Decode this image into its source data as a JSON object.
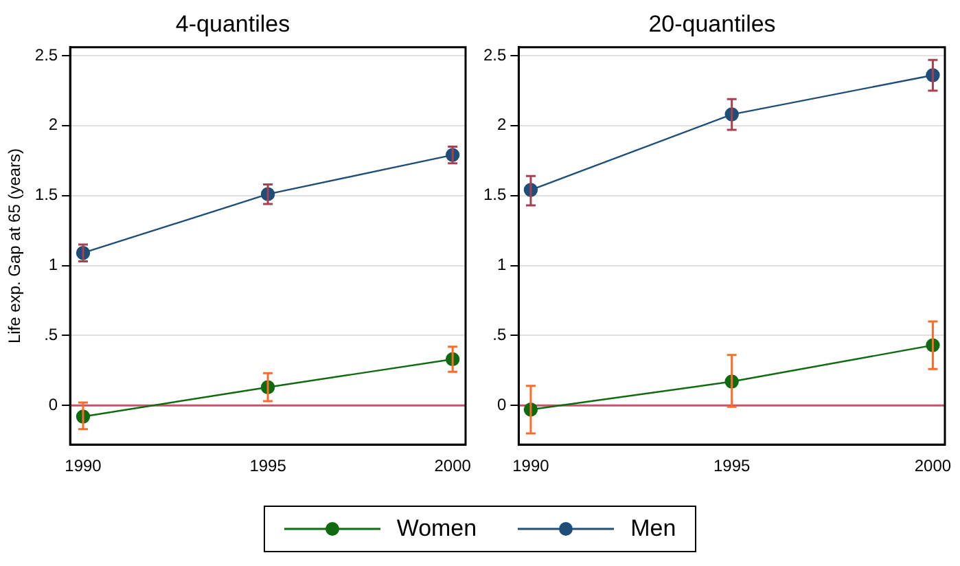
{
  "chart_data": [
    {
      "type": "line",
      "title": "4-quantiles",
      "ylabel": "Life exp. Gap at 65 (years)",
      "x": [
        1990,
        1995,
        2000
      ],
      "xlim": [
        1989.65,
        2000.35
      ],
      "xticks": [
        1990,
        1995,
        2000
      ],
      "ylim": [
        -0.28,
        2.56
      ],
      "yticks": [
        0,
        {
          "value": 0.5,
          "label": ".5"
        },
        1,
        1.5,
        2,
        2.5
      ],
      "grid": "y",
      "marker": "circle",
      "legend": "bottom",
      "ref_lines": [
        {
          "axis": "y",
          "value": 0,
          "color": "#c8506e"
        }
      ],
      "series": [
        {
          "name": "Women",
          "color": "#0f6b0f",
          "values": [
            -0.08,
            0.13,
            0.33
          ],
          "errors": [
            [
              -0.17,
              0.02
            ],
            [
              0.03,
              0.23
            ],
            [
              0.24,
              0.42
            ]
          ]
        },
        {
          "name": "Men",
          "color": "#1f4e79",
          "values": [
            1.09,
            1.51,
            1.79
          ],
          "errors": [
            [
              1.03,
              1.15
            ],
            [
              1.44,
              1.58
            ],
            [
              1.73,
              1.85
            ]
          ]
        }
      ]
    },
    {
      "type": "line",
      "title": "20-quantiles",
      "x": [
        1990,
        1995,
        2000
      ],
      "xlim": [
        1989.7,
        2000.3
      ],
      "xticks": [
        1990,
        1995,
        2000
      ],
      "ylim": [
        -0.28,
        2.56
      ],
      "yticks": [
        0,
        {
          "value": 0.5,
          "label": ".5"
        },
        1,
        1.5,
        2,
        2.5
      ],
      "grid": "y",
      "marker": "circle",
      "ref_lines": [
        {
          "axis": "y",
          "value": 0,
          "color": "#c8506e"
        }
      ],
      "series": [
        {
          "color": "#0f6b0f",
          "values": [
            -0.03,
            0.17,
            0.43
          ],
          "errors": [
            [
              -0.2,
              0.14
            ],
            [
              -0.01,
              0.36
            ],
            [
              0.26,
              0.6
            ]
          ]
        },
        {
          "color": "#1f4e79",
          "values": [
            1.54,
            2.08,
            2.36
          ],
          "errors": [
            [
              1.43,
              1.64
            ],
            [
              1.97,
              2.19
            ],
            [
              2.25,
              2.47
            ]
          ]
        }
      ]
    }
  ]
}
